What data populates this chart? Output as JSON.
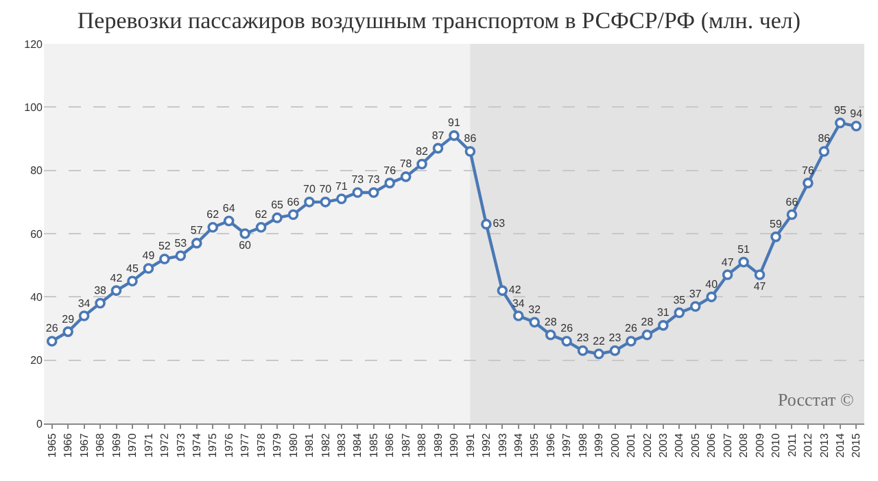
{
  "chart_data": {
    "type": "line",
    "title": "Перевозки пассажиров воздушным транспортом в РСФСР/РФ (млн. чел)",
    "x": [
      1965,
      1966,
      1967,
      1968,
      1969,
      1970,
      1971,
      1972,
      1973,
      1974,
      1975,
      1976,
      1977,
      1978,
      1979,
      1980,
      1981,
      1982,
      1983,
      1984,
      1985,
      1986,
      1987,
      1988,
      1989,
      1990,
      1991,
      1992,
      1993,
      1994,
      1995,
      1996,
      1997,
      1998,
      1999,
      2000,
      2001,
      2002,
      2003,
      2004,
      2005,
      2006,
      2007,
      2008,
      2009,
      2010,
      2011,
      2012,
      2013,
      2014,
      2015
    ],
    "series": [
      {
        "color": "#4a78b5",
        "values": [
          26,
          29,
          34,
          38,
          42,
          45,
          49,
          52,
          53,
          57,
          62,
          64,
          60,
          62,
          65,
          66,
          70,
          70,
          71,
          73,
          73,
          76,
          78,
          82,
          87,
          91,
          86,
          63,
          42,
          34,
          32,
          28,
          26,
          23,
          22,
          23,
          26,
          28,
          31,
          35,
          37,
          40,
          47,
          51,
          47,
          59,
          66,
          76,
          86,
          95,
          94
        ]
      }
    ],
    "xlim": [
      1964.5,
      2015.5
    ],
    "xticks": [
      1965,
      1966,
      1967,
      1968,
      1969,
      1970,
      1971,
      1972,
      1973,
      1974,
      1975,
      1976,
      1977,
      1978,
      1979,
      1980,
      1981,
      1982,
      1983,
      1984,
      1985,
      1986,
      1987,
      1988,
      1989,
      1990,
      1991,
      1992,
      1993,
      1994,
      1995,
      1996,
      1997,
      1998,
      1999,
      2000,
      2001,
      2002,
      2003,
      2004,
      2005,
      2006,
      2007,
      2008,
      2009,
      2010,
      2011,
      2012,
      2013,
      2014,
      2015
    ],
    "ylim": [
      0,
      120
    ],
    "yticks": [
      0,
      20,
      40,
      60,
      80,
      100,
      120
    ],
    "grid": "y",
    "marker": "circle",
    "line_style": "solid",
    "data_labels": true,
    "bands": [
      {
        "axis": "x",
        "from": 1991,
        "to": 2015.5,
        "color": "#e3e3e3"
      }
    ],
    "annotations": [
      "Росстат ©"
    ]
  }
}
